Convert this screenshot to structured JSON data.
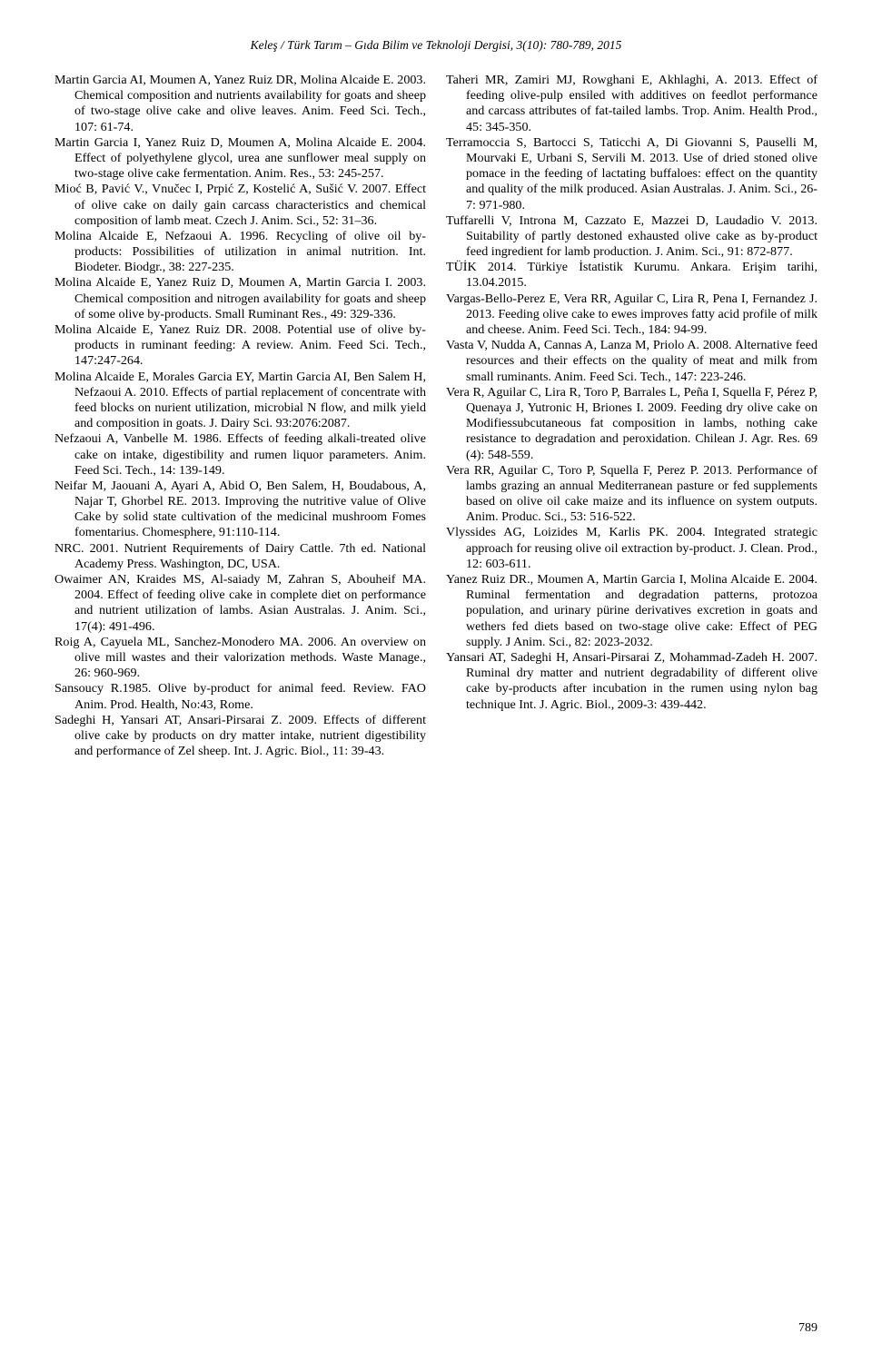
{
  "running_head": "Keleş / Türk Tarım – Gıda Bilim ve Teknoloji Dergisi, 3(10): 780-789, 2015",
  "page_number": "789",
  "refs": [
    "Martin Garcia AI, Moumen A, Yanez Ruiz DR, Molina Alcaide E. 2003. Chemical composition and nutrients availability for goats and sheep of two-stage olive cake and olive leaves. Anim. Feed Sci. Tech., 107: 61-74.",
    "Martin Garcia I, Yanez Ruiz D, Moumen A, Molina Alcaide E. 2004. Effect of polyethylene glycol, urea ane sunflower meal supply on two-stage olive cake fermentation. Anim. Res., 53: 245-257.",
    "Mioć B, Pavić V., Vnučec I, Prpić Z, Kostelić A, Sušić V. 2007. Effect of olive cake on daily gain carcass characteristics and chemical composition of lamb meat. Czech J. Anim. Sci., 52: 31–36.",
    "Molina Alcaide E, Nefzaoui A. 1996. Recycling of olive oil by-products: Possibilities of utilization in animal nutrition. Int. Biodeter. Biodgr., 38: 227-235.",
    "Molina Alcaide E, Yanez Ruiz D, Moumen A, Martin Garcia I. 2003. Chemical composition and nitrogen availability for goats and sheep of some olive by-products. Small Ruminant Res., 49: 329-336.",
    "Molina Alcaide E, Yanez Ruiz DR. 2008. Potential use of olive by-products in ruminant feeding: A review. Anim. Feed Sci. Tech., 147:247-264.",
    "Molina Alcaide E, Morales Garcia EY, Martin Garcia AI, Ben Salem H, Nefzaoui A. 2010. Effects of partial replacement of concentrate with feed blocks on nurient utilization, microbial N flow, and milk yield and composition in goats. J. Dairy Sci. 93:2076:2087.",
    "Nefzaoui A, Vanbelle M. 1986. Effects of feeding alkali-treated olive cake on intake, digestibility and rumen liquor parameters. Anim. Feed Sci. Tech., 14: 139-149.",
    "Neifar M, Jaouani A, Ayari A, Abid O, Ben Salem, H, Boudabous, A, Najar T, Ghorbel RE. 2013. Improving the nutritive value of Olive Cake by solid state cultivation of the medicinal mushroom Fomes fomentarius. Chomesphere, 91:110-114.",
    "NRC. 2001. Nutrient Requirements of Dairy Cattle. 7th ed. National Academy Press. Washington, DC, USA.",
    "Owaimer AN, Kraides MS, Al-saiady M, Zahran S, Abouheif MA. 2004. Effect of feeding olive cake in complete diet on performance and nutrient utilization of lambs. Asian Australas. J. Anim. Sci., 17(4): 491-496.",
    "Roig A, Cayuela ML, Sanchez-Monodero MA. 2006. An overview on olive mill wastes and their valorization methods. Waste Manage., 26: 960-969.",
    "Sansoucy R.1985. Olive by-product for animal feed. Review. FAO Anim. Prod. Health, No:43, Rome.",
    "Sadeghi H, Yansari AT, Ansari-Pirsarai Z. 2009. Effects of different olive cake by products on dry matter intake, nutrient digestibility and performance of Zel sheep. Int. J. Agric. Biol., 11: 39-43.",
    "Taheri MR, Zamiri MJ, Rowghani E, Akhlaghi, A. 2013. Effect of feeding olive-pulp ensiled with additives on feedlot performance and carcass attributes of fat-tailed lambs. Trop. Anim. Health Prod., 45: 345-350.",
    "Terramoccia S, Bartocci S, Taticchi A, Di Giovanni S, Pauselli M, Mourvaki E, Urbani S, Servili M. 2013. Use of dried stoned olive pomace in the feeding of lactating buffaloes: effect on the quantity and quality of the milk produced. Asian Australas. J. Anim. Sci., 26-7: 971-980.",
    "Tuffarelli V, Introna M, Cazzato E, Mazzei D, Laudadio V. 2013. Suitability of partly destoned exhausted olive cake as by-product feed ingredient for lamb production. J. Anim. Sci., 91: 872-877.",
    "TÜİK 2014. Türkiye İstatistik Kurumu. Ankara. Erişim tarihi, 13.04.2015.",
    "Vargas-Bello-Perez E, Vera RR, Aguilar C, Lira R, Pena I, Fernandez J. 2013. Feeding olive cake to ewes improves fatty acid profile of milk and cheese. Anim. Feed Sci. Tech., 184: 94-99.",
    "Vasta V, Nudda A, Cannas A, Lanza M, Priolo A. 2008. Alternative feed resources and their effects on the quality of meat and milk from small ruminants. Anim. Feed Sci. Tech., 147: 223-246.",
    "Vera R, Aguilar C, Lira R, Toro P, Barrales L, Peña I, Squella F, Pérez P, Quenaya J, Yutronic H, Briones I. 2009. Feeding dry olive cake on Modifiessubcutaneous fat composition in lambs, nothing cake resistance to degradation and peroxidation. Chilean J. Agr. Res. 69 (4): 548-559.",
    "Vera RR, Aguilar C, Toro P, Squella F, Perez P. 2013. Performance of lambs grazing an annual Mediterranean pasture or fed supplements based on olive oil cake maize and its influence on system outputs. Anim. Produc. Sci., 53: 516-522.",
    "Vlyssides AG, Loizides M, Karlis PK. 2004. Integrated strategic approach for reusing olive oil extraction by-product. J. Clean. Prod., 12: 603-611.",
    "Yanez Ruiz DR., Moumen A, Martin Garcia I, Molina Alcaide E. 2004. Ruminal fermentation and degradation patterns, protozoa population, and urinary pürine derivatives excretion in goats and wethers fed diets based on two-stage olive cake: Effect of PEG supply. J Anim. Sci., 82: 2023-2032.",
    "Yansari AT, Sadeghi H, Ansari-Pirsarai Z, Mohammad-Zadeh H. 2007. Ruminal dry matter and nutrient degradability of different  olive cake by-products after incubation in the rumen using nylon bag technique Int. J. Agric. Biol., 2009-3: 439-442."
  ]
}
